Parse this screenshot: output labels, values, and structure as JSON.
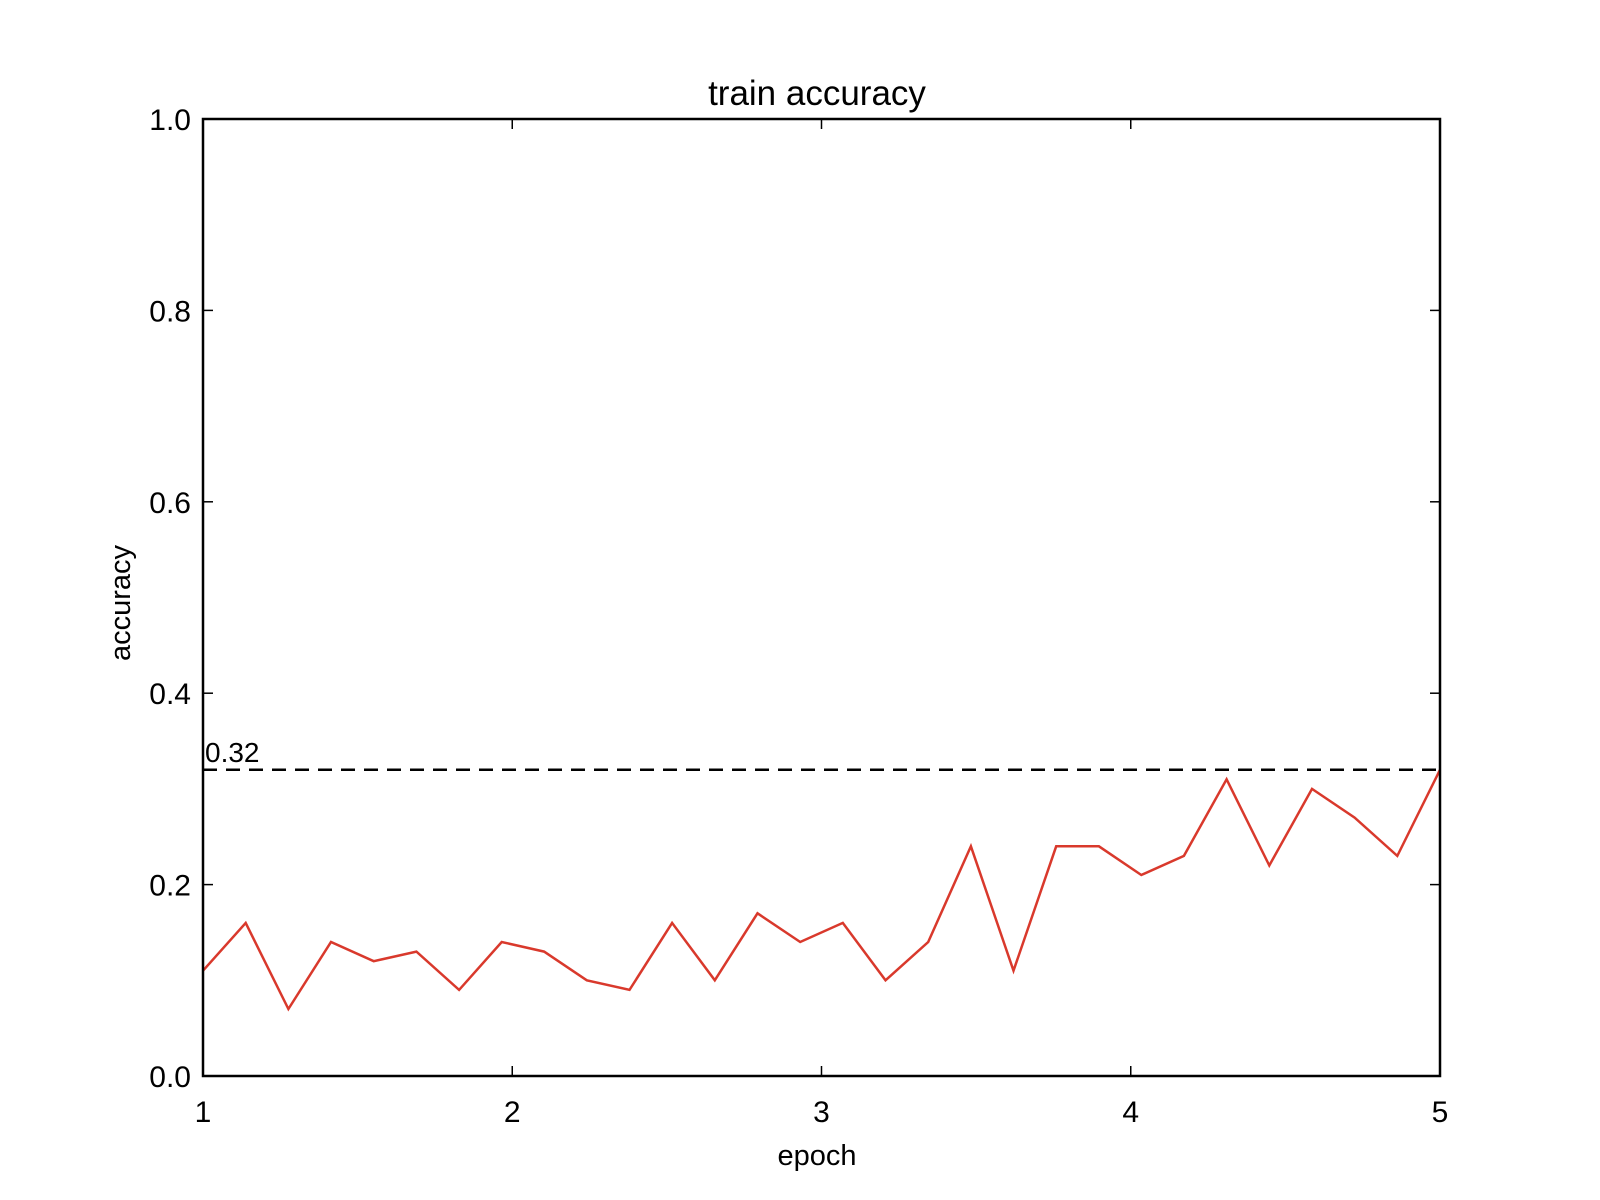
{
  "chart_data": {
    "type": "line",
    "title": "train accuracy",
    "xlabel": "epoch",
    "ylabel": "accuracy",
    "xlim": [
      1,
      5
    ],
    "ylim": [
      0,
      1
    ],
    "xticks": [
      1,
      2,
      3,
      4,
      5
    ],
    "xtick_labels": [
      "1",
      "2",
      "3",
      "4",
      "5"
    ],
    "yticks": [
      0,
      0.2,
      0.4,
      0.6,
      0.8,
      1.0
    ],
    "ytick_labels": [
      "0.0",
      "0.2",
      "0.4",
      "0.6",
      "0.8",
      "1.0"
    ],
    "grid": false,
    "series": [
      {
        "color": "#d9392c",
        "x": [
          1.0,
          1.138,
          1.276,
          1.414,
          1.552,
          1.69,
          1.828,
          1.966,
          2.103,
          2.241,
          2.379,
          2.517,
          2.655,
          2.793,
          2.931,
          3.069,
          3.207,
          3.345,
          3.483,
          3.621,
          3.759,
          3.897,
          4.034,
          4.172,
          4.31,
          4.448,
          4.586,
          4.724,
          4.862,
          5.0
        ],
        "y": [
          0.11,
          0.16,
          0.07,
          0.14,
          0.12,
          0.13,
          0.09,
          0.14,
          0.13,
          0.1,
          0.09,
          0.16,
          0.1,
          0.17,
          0.14,
          0.16,
          0.1,
          0.14,
          0.24,
          0.11,
          0.24,
          0.24,
          0.21,
          0.23,
          0.31,
          0.22,
          0.3,
          0.27,
          0.23,
          0.32
        ]
      }
    ],
    "reference_line": {
      "y": 0.32,
      "label": "0.32",
      "style": "dashed",
      "color": "#000000"
    }
  }
}
